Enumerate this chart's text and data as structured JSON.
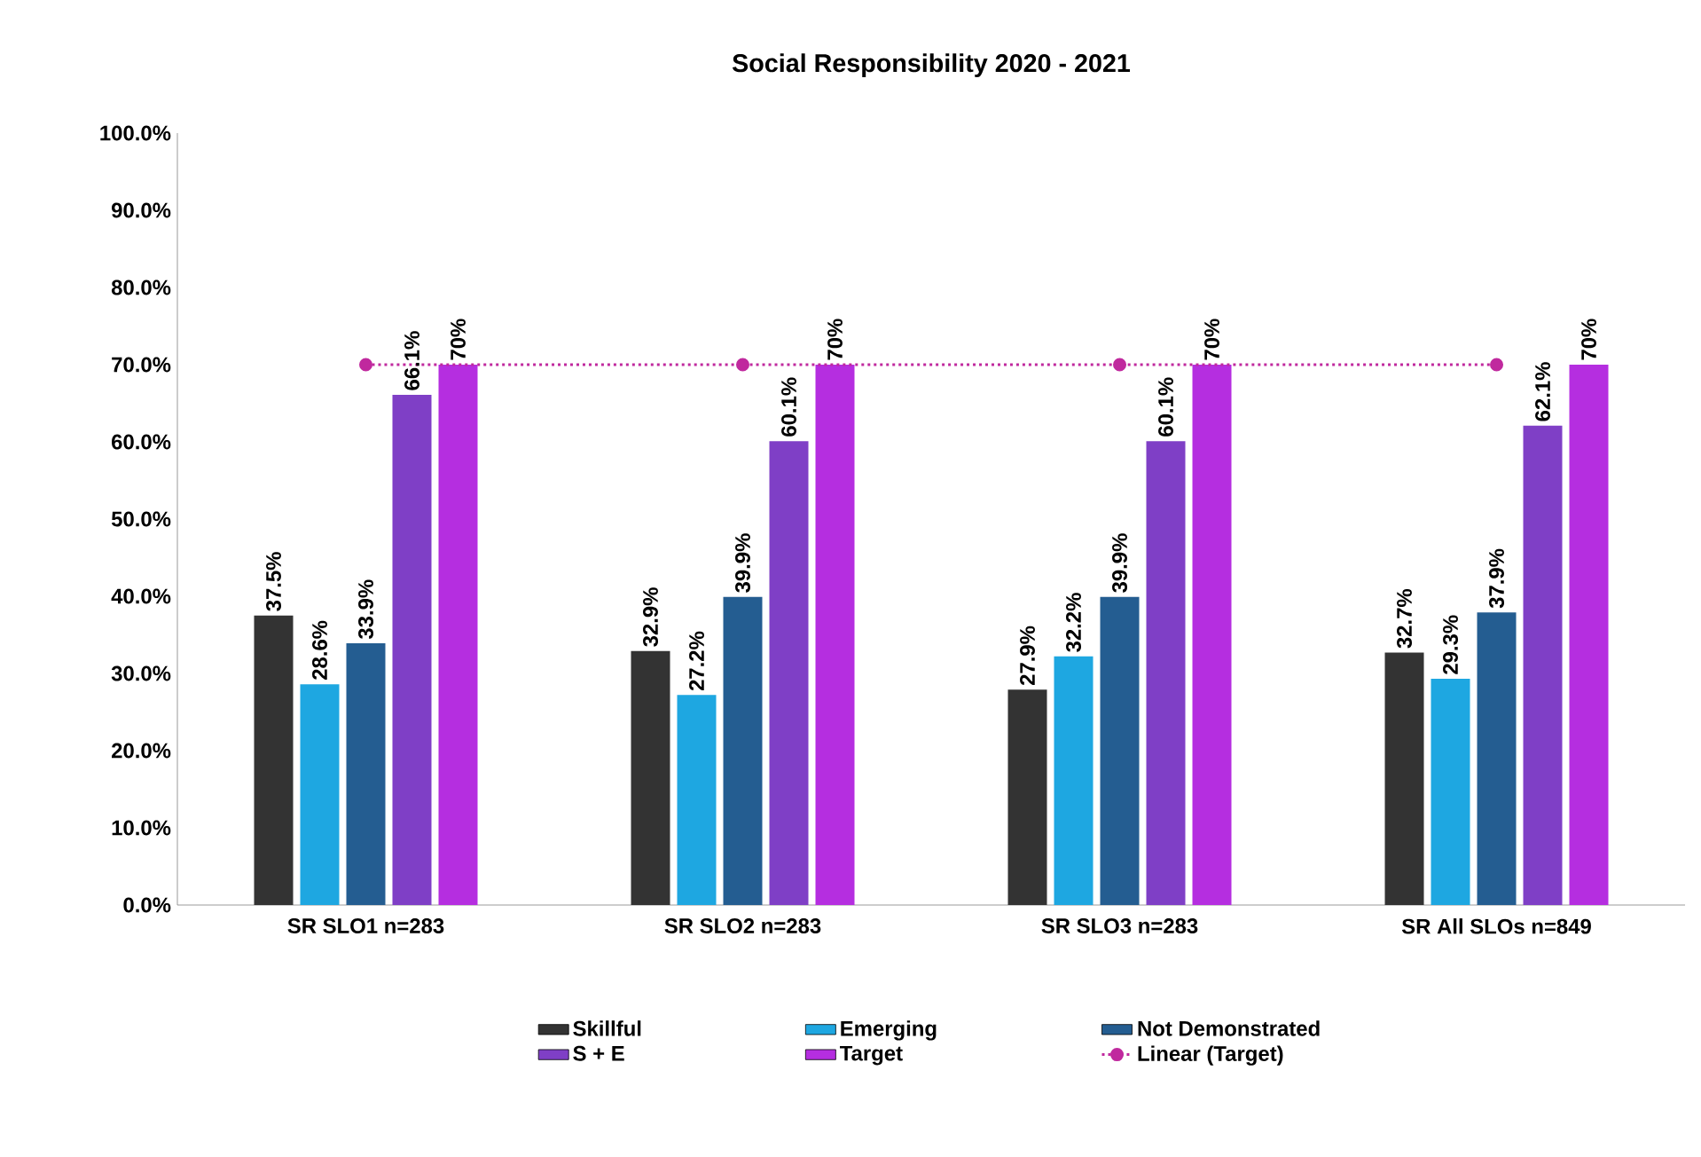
{
  "chart_data": {
    "type": "bar",
    "title": "Social Responsibility 2020 - 2021",
    "categories": [
      "SR SLO1 n=283",
      "SR SLO2 n=283",
      "SR SLO3 n=283",
      "SR All SLOs n=849"
    ],
    "series": [
      {
        "name": "Skillful",
        "color": "#333333",
        "values": [
          37.5,
          32.9,
          27.9,
          32.7
        ],
        "value_labels": [
          "37.5%",
          "32.9%",
          "27.9%",
          "32.7%"
        ]
      },
      {
        "name": "Emerging",
        "color": "#1ea7e1",
        "values": [
          28.6,
          27.2,
          32.2,
          29.3
        ],
        "value_labels": [
          "28.6%",
          "27.2%",
          "32.2%",
          "29.3%"
        ]
      },
      {
        "name": "Not Demonstrated",
        "color": "#245d91",
        "values": [
          33.9,
          39.9,
          39.9,
          37.9
        ],
        "value_labels": [
          "33.9%",
          "39.9%",
          "39.9%",
          "37.9%"
        ]
      },
      {
        "name": "S + E",
        "color": "#7f3fc6",
        "values": [
          66.1,
          60.1,
          60.1,
          62.1
        ],
        "value_labels": [
          "66.1%",
          "60.1%",
          "60.1%",
          "62.1%"
        ]
      },
      {
        "name": "Target",
        "color": "#b52ee0",
        "values": [
          70,
          70,
          70,
          70
        ],
        "value_labels": [
          "70%",
          "70%",
          "70%",
          "70%"
        ]
      },
      {
        "name": "Linear (Target)",
        "type": "line",
        "color": "#c0299e",
        "values": [
          70,
          70,
          70,
          70
        ],
        "marker": "circle",
        "line_style": "dotted"
      }
    ],
    "ylim": [
      0,
      100
    ],
    "yticks": [
      {
        "value": 0,
        "label": "0.0%"
      },
      {
        "value": 10,
        "label": "10.0%"
      },
      {
        "value": 20,
        "label": "20.0%"
      },
      {
        "value": 30,
        "label": "30.0%"
      },
      {
        "value": 40,
        "label": "40.0%"
      },
      {
        "value": 50,
        "label": "50.0%"
      },
      {
        "value": 60,
        "label": "60.0%"
      },
      {
        "value": 70,
        "label": "70.0%"
      },
      {
        "value": 80,
        "label": "80.0%"
      },
      {
        "value": 90,
        "label": "90.0%"
      },
      {
        "value": 100,
        "label": "100.0%"
      }
    ],
    "legend": "bottom"
  }
}
